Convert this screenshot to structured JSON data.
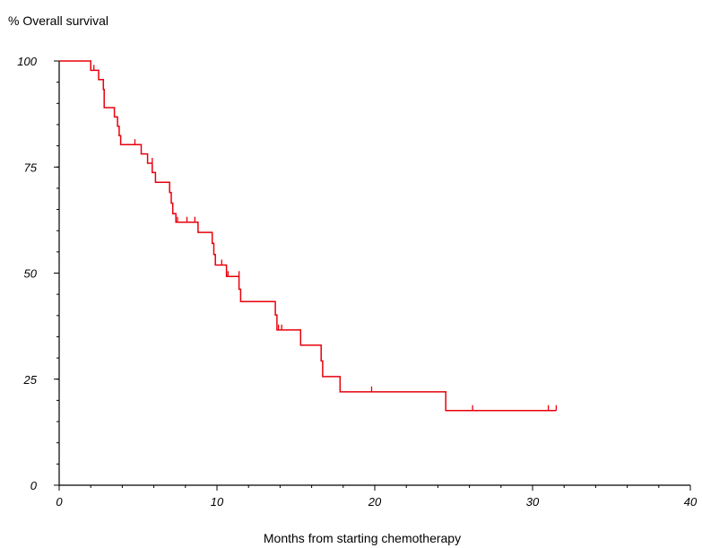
{
  "chart_data": {
    "type": "line",
    "step": true,
    "ylabel": "% Overall survival",
    "xlabel": "Months from starting chemotherapy",
    "xlim": [
      0,
      40
    ],
    "ylim": [
      0,
      100
    ],
    "x_ticks": [
      0,
      10,
      20,
      30,
      40
    ],
    "y_ticks": [
      0,
      25,
      50,
      75,
      100
    ],
    "x_minor_step": 2,
    "y_minor_step": 5,
    "grid": false,
    "line_color": "#e8000b",
    "series": [
      {
        "points": [
          [
            0,
            100
          ],
          [
            2.0,
            100
          ],
          [
            2.0,
            97.8
          ],
          [
            2.5,
            97.8
          ],
          [
            2.5,
            95.6
          ],
          [
            2.8,
            95.6
          ],
          [
            2.8,
            93.3
          ],
          [
            2.85,
            93.3
          ],
          [
            2.85,
            89.0
          ],
          [
            3.5,
            89.0
          ],
          [
            3.5,
            86.8
          ],
          [
            3.7,
            86.8
          ],
          [
            3.7,
            84.6
          ],
          [
            3.8,
            84.6
          ],
          [
            3.8,
            82.4
          ],
          [
            3.9,
            82.4
          ],
          [
            3.9,
            80.3
          ],
          [
            5.2,
            80.3
          ],
          [
            5.2,
            78.1
          ],
          [
            5.6,
            78.1
          ],
          [
            5.6,
            75.9
          ],
          [
            5.9,
            75.9
          ],
          [
            5.9,
            73.7
          ],
          [
            6.1,
            73.7
          ],
          [
            6.1,
            71.4
          ],
          [
            7.0,
            71.4
          ],
          [
            7.0,
            69.0
          ],
          [
            7.1,
            69.0
          ],
          [
            7.1,
            66.5
          ],
          [
            7.2,
            66.5
          ],
          [
            7.2,
            64.0
          ],
          [
            7.4,
            64.0
          ],
          [
            7.4,
            62.0
          ],
          [
            8.8,
            62.0
          ],
          [
            8.8,
            59.6
          ],
          [
            9.7,
            59.6
          ],
          [
            9.7,
            57.0
          ],
          [
            9.8,
            57.0
          ],
          [
            9.8,
            54.4
          ],
          [
            9.9,
            54.4
          ],
          [
            9.9,
            51.9
          ],
          [
            10.6,
            51.9
          ],
          [
            10.6,
            49.2
          ],
          [
            11.4,
            49.2
          ],
          [
            11.4,
            46.2
          ],
          [
            11.5,
            46.2
          ],
          [
            11.5,
            43.3
          ],
          [
            13.7,
            43.3
          ],
          [
            13.7,
            40.1
          ],
          [
            13.8,
            40.1
          ],
          [
            13.8,
            36.6
          ],
          [
            15.3,
            36.6
          ],
          [
            15.3,
            33.0
          ],
          [
            16.6,
            33.0
          ],
          [
            16.6,
            29.3
          ],
          [
            16.7,
            29.3
          ],
          [
            16.7,
            25.6
          ],
          [
            17.8,
            25.6
          ],
          [
            17.8,
            22.0
          ],
          [
            24.5,
            22.0
          ],
          [
            24.5,
            17.6
          ],
          [
            31.5,
            17.6
          ]
        ],
        "censored": [
          [
            2.2,
            97.8
          ],
          [
            4.8,
            80.3
          ],
          [
            5.9,
            75.9
          ],
          [
            7.5,
            62.0
          ],
          [
            8.1,
            62.0
          ],
          [
            8.6,
            62.0
          ],
          [
            10.3,
            51.9
          ],
          [
            10.7,
            49.2
          ],
          [
            11.4,
            49.2
          ],
          [
            13.9,
            36.6
          ],
          [
            14.1,
            36.6
          ],
          [
            19.8,
            22.0
          ],
          [
            26.2,
            17.6
          ],
          [
            31.0,
            17.6
          ],
          [
            31.5,
            17.6
          ]
        ]
      }
    ]
  }
}
